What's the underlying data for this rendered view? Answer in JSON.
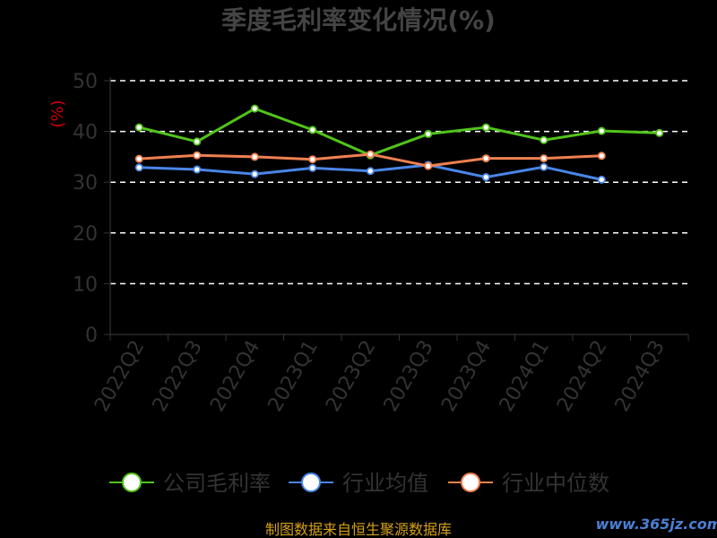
{
  "chart_data": {
    "type": "line",
    "title": "季度毛利率变化情况(%)",
    "ylabel": "(%)",
    "ylim": [
      0,
      50
    ],
    "yticks": [
      0,
      10,
      20,
      30,
      40,
      50
    ],
    "categories": [
      "2022Q2",
      "2022Q3",
      "2022Q4",
      "2023Q1",
      "2023Q2",
      "2023Q3",
      "2023Q4",
      "2024Q1",
      "2024Q2",
      "2024Q3"
    ],
    "grid": true,
    "legend_position": "bottom",
    "series": [
      {
        "name": "公司毛利率",
        "color": "#52c41a",
        "values": [
          40.8,
          38.0,
          44.5,
          40.3,
          35.3,
          39.5,
          40.8,
          38.3,
          40.1,
          39.7
        ]
      },
      {
        "name": "行业均值",
        "color": "#4a86e8",
        "values": [
          32.9,
          32.5,
          31.6,
          32.8,
          32.2,
          33.4,
          31.0,
          33.0,
          30.5,
          null
        ]
      },
      {
        "name": "行业中位数",
        "color": "#f08050",
        "values": [
          34.6,
          35.3,
          35.0,
          34.5,
          35.5,
          33.2,
          34.7,
          34.7,
          35.2,
          null
        ]
      }
    ],
    "source_note": "制图数据来自恒生聚源数据库",
    "watermark": "www.365jz.com"
  }
}
